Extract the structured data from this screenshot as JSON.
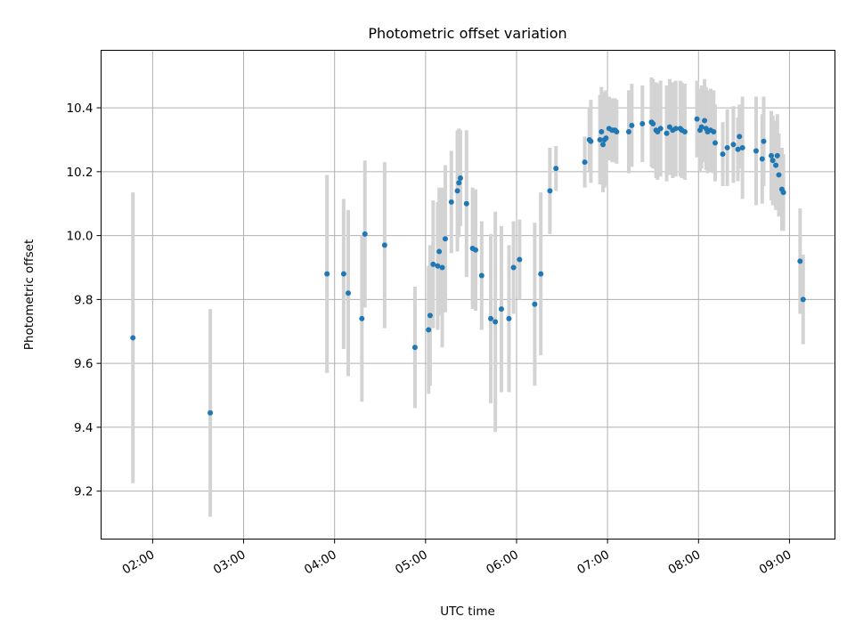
{
  "chart_data": {
    "type": "scatter",
    "title": "Photometric offset variation",
    "xlabel": "UTC time",
    "ylabel": "Photometric offset",
    "x_ticks": [
      "02:00",
      "03:00",
      "04:00",
      "05:00",
      "06:00",
      "07:00",
      "08:00",
      "09:00"
    ],
    "y_ticks": [
      "9.2",
      "9.4",
      "9.6",
      "9.8",
      "10.0",
      "10.2",
      "10.4"
    ],
    "xlim": [
      "01:26",
      "09:30"
    ],
    "ylim": [
      9.05,
      10.58
    ],
    "grid": true,
    "colors": {
      "point": "#1f77b4",
      "errorbar": "#d3d3d3",
      "grid": "#b0b0b0"
    },
    "x": [
      "01:47",
      "02:38",
      "03:55",
      "04:06",
      "04:09",
      "04:18",
      "04:20",
      "04:33",
      "04:53",
      "05:02",
      "05:03",
      "05:05",
      "05:08",
      "05:09",
      "05:11",
      "05:13",
      "05:17",
      "05:21",
      "05:22",
      "05:23",
      "05:27",
      "05:31",
      "05:33",
      "05:37",
      "05:43",
      "05:46",
      "05:50",
      "05:55",
      "05:58",
      "06:02",
      "06:12",
      "06:16",
      "06:22",
      "06:26",
      "06:45",
      "06:48",
      "06:49",
      "06:55",
      "06:56",
      "06:57",
      "06:58",
      "06:59",
      "07:01",
      "07:03",
      "07:04",
      "07:05",
      "07:06",
      "07:14",
      "07:16",
      "07:23",
      "07:29",
      "07:30",
      "07:32",
      "07:33",
      "07:35",
      "07:39",
      "07:41",
      "07:43",
      "07:45",
      "07:48",
      "07:49",
      "07:51",
      "07:59",
      "08:01",
      "08:02",
      "08:04",
      "08:05",
      "08:06",
      "08:08",
      "08:10",
      "08:11",
      "08:16",
      "08:19",
      "08:23",
      "08:26",
      "08:27",
      "08:29",
      "08:38",
      "08:42",
      "08:43",
      "08:48",
      "08:49",
      "08:51",
      "08:52",
      "08:53",
      "08:55",
      "08:56",
      "09:07",
      "09:09"
    ],
    "y": [
      9.68,
      9.445,
      9.88,
      9.88,
      9.82,
      9.74,
      10.005,
      9.97,
      9.65,
      9.705,
      9.75,
      9.91,
      9.905,
      9.95,
      9.9,
      9.99,
      10.105,
      10.14,
      10.165,
      10.18,
      10.1,
      9.96,
      9.955,
      9.875,
      9.74,
      9.73,
      9.77,
      9.74,
      9.9,
      9.925,
      9.785,
      9.88,
      10.14,
      10.21,
      10.23,
      10.3,
      10.295,
      10.3,
      10.325,
      10.285,
      10.3,
      10.305,
      10.335,
      10.33,
      10.33,
      10.33,
      10.325,
      10.325,
      10.345,
      10.35,
      10.355,
      10.35,
      10.33,
      10.325,
      10.335,
      10.32,
      10.34,
      10.33,
      10.335,
      10.335,
      10.33,
      10.325,
      10.365,
      10.33,
      10.34,
      10.36,
      10.335,
      10.325,
      10.33,
      10.325,
      10.29,
      10.255,
      10.275,
      10.285,
      10.27,
      10.31,
      10.275,
      10.265,
      10.24,
      10.295,
      10.25,
      10.235,
      10.22,
      10.25,
      10.19,
      10.145,
      10.135,
      9.92,
      9.8
    ],
    "yerr": [
      0.455,
      0.325,
      0.31,
      0.235,
      0.26,
      0.26,
      0.23,
      0.26,
      0.19,
      0.2,
      0.22,
      0.2,
      0.2,
      0.2,
      0.25,
      0.23,
      0.16,
      0.19,
      0.17,
      0.15,
      0.23,
      0.19,
      0.19,
      0.17,
      0.265,
      0.345,
      0.26,
      0.23,
      0.145,
      0.125,
      0.255,
      0.255,
      0.135,
      0.07,
      0.08,
      0.1,
      0.13,
      0.14,
      0.14,
      0.15,
      0.15,
      0.15,
      0.1,
      0.1,
      0.1,
      0.1,
      0.1,
      0.13,
      0.13,
      0.12,
      0.14,
      0.14,
      0.15,
      0.15,
      0.15,
      0.15,
      0.15,
      0.15,
      0.15,
      0.15,
      0.15,
      0.15,
      0.12,
      0.13,
      0.13,
      0.13,
      0.13,
      0.13,
      0.13,
      0.13,
      0.12,
      0.1,
      0.12,
      0.12,
      0.1,
      0.1,
      0.16,
      0.17,
      0.14,
      0.14,
      0.14,
      0.14,
      0.14,
      0.13,
      0.13,
      0.13,
      0.12,
      0.165,
      0.14
    ]
  }
}
